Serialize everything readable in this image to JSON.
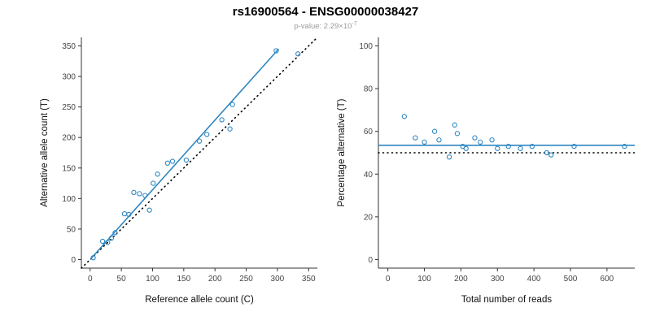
{
  "header": {
    "title": "rs16900564 - ENSG00000038427",
    "subtitle_prefix": "p-value: 2.29×10",
    "subtitle_exponent": "-7"
  },
  "colors": {
    "accent": "#2e86c1",
    "dotted_line": "#000000",
    "axis": "#333333",
    "tick_label": "#444444",
    "subtitle": "#9a9a9a"
  },
  "chart_data": [
    {
      "type": "scatter",
      "title": "",
      "xlabel": "Reference allele count (C)",
      "ylabel": "Alternative allele count (T)",
      "xlim": [
        0,
        350
      ],
      "ylim": [
        0,
        350
      ],
      "xticks": [
        0,
        50,
        100,
        150,
        200,
        250,
        300,
        350
      ],
      "yticks": [
        0,
        50,
        100,
        150,
        200,
        250,
        300,
        350
      ],
      "grid": false,
      "points": [
        [
          5,
          3
        ],
        [
          20,
          30
        ],
        [
          28,
          28
        ],
        [
          34,
          35
        ],
        [
          40,
          44
        ],
        [
          55,
          75
        ],
        [
          62,
          74
        ],
        [
          70,
          110
        ],
        [
          79,
          108
        ],
        [
          88,
          105
        ],
        [
          95,
          81
        ],
        [
          101,
          125
        ],
        [
          108,
          140
        ],
        [
          124,
          158
        ],
        [
          132,
          161
        ],
        [
          154,
          163
        ],
        [
          175,
          194
        ],
        [
          187,
          205
        ],
        [
          211,
          229
        ],
        [
          224,
          214
        ],
        [
          228,
          254
        ],
        [
          298,
          342
        ],
        [
          333,
          337
        ]
      ],
      "lines": [
        {
          "name": "identity-line",
          "style": "dotted",
          "color": "black",
          "identity": true
        },
        {
          "name": "fit-line",
          "style": "solid",
          "color": "accent",
          "points": [
            [
              0,
              0
            ],
            [
              302,
              345
            ]
          ]
        }
      ]
    },
    {
      "type": "scatter",
      "title": "",
      "xlabel": "Total number of reads",
      "ylabel": "Percentage alternative (T)",
      "xlim": [
        0,
        650
      ],
      "ylim": [
        0,
        100
      ],
      "xticks": [
        0,
        100,
        200,
        300,
        400,
        500,
        600
      ],
      "yticks": [
        0,
        20,
        40,
        60,
        80,
        100
      ],
      "grid": false,
      "points": [
        [
          45,
          67
        ],
        [
          75,
          57
        ],
        [
          100,
          55
        ],
        [
          128,
          60
        ],
        [
          140,
          56
        ],
        [
          168,
          48
        ],
        [
          183,
          63
        ],
        [
          190,
          59
        ],
        [
          205,
          53
        ],
        [
          214,
          52
        ],
        [
          238,
          57
        ],
        [
          253,
          55
        ],
        [
          285,
          56
        ],
        [
          300,
          52
        ],
        [
          330,
          53
        ],
        [
          363,
          52
        ],
        [
          395,
          53
        ],
        [
          435,
          50
        ],
        [
          447,
          49
        ],
        [
          510,
          53
        ],
        [
          648,
          53
        ]
      ],
      "lines": [
        {
          "name": "expected-line",
          "style": "dotted",
          "color": "black",
          "full_width": true,
          "y": 50
        },
        {
          "name": "mean-line",
          "style": "solid",
          "color": "accent",
          "full_width": true,
          "y": 53.5
        }
      ]
    }
  ]
}
